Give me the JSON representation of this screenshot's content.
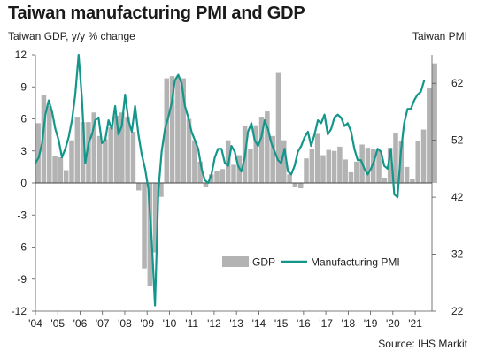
{
  "title": "Taiwan manufacturing PMI and GDP",
  "source": "Source: IHS Markit",
  "chart_data": {
    "type": "bar+line",
    "left_axis_label": "Taiwan GDP, y/y % change",
    "right_axis_label": "Taiwan PMI",
    "left_ticks": [
      "12",
      "9",
      "6",
      "3",
      "0",
      "-3",
      "-6",
      "-9",
      "-12"
    ],
    "left_ylim": [
      -12,
      12
    ],
    "right_ticks": [
      "62",
      "52",
      "42",
      "32",
      "22"
    ],
    "right_ylim": [
      22,
      67
    ],
    "x_ticks": [
      "'04",
      "'05",
      "'06",
      "'07",
      "'08",
      "'09",
      "'10",
      "'11",
      "'12",
      "'13",
      "'14",
      "'15",
      "'16",
      "'17",
      "'18",
      "'19",
      "'20",
      "'21"
    ],
    "gdp_quarter_start": 2004,
    "series": [
      {
        "name": "GDP",
        "axis": "left",
        "color": "#b3b3b3",
        "values": [
          5.6,
          8.2,
          7.2,
          2.5,
          2.4,
          1.2,
          4.0,
          6.2,
          5.7,
          5.7,
          6.6,
          4.4,
          4.1,
          5.2,
          6.3,
          6.6,
          6.2,
          4.8,
          -0.7,
          -8.0,
          -9.6,
          -6.5,
          -1.3,
          9.8,
          10.0,
          9.9,
          9.8,
          6.0,
          4.0,
          2.0,
          -0.4,
          0.8,
          1.1,
          1.3,
          4.0,
          1.7,
          2.6,
          5.3,
          3.2,
          5.4,
          6.2,
          6.7,
          4.4,
          10.3,
          4.0,
          0.8,
          -0.4,
          -0.5,
          2.3,
          3.2,
          4.6,
          2.6,
          3.1,
          3.0,
          3.4,
          2.2,
          1.0,
          2.0,
          3.6,
          3.3,
          3.2,
          3.0,
          0.5,
          3.3,
          4.7,
          3.9,
          1.5,
          0.4,
          3.9,
          5.0,
          8.9,
          11.2
        ]
      },
      {
        "name": "Manufacturing PMI",
        "axis": "right",
        "color": "#14968a",
        "values": [
          48.0,
          49.0,
          51.5,
          56.5,
          59.0,
          57.0,
          54.0,
          52.0,
          49.0,
          50.5,
          52.5,
          55.5,
          60.0,
          67.0,
          59.5,
          48.0,
          51.5,
          53.0,
          55.5,
          56.0,
          51.5,
          52.0,
          55.5,
          54.0,
          58.0,
          53.0,
          54.5,
          60.0,
          55.5,
          53.5,
          58.0,
          53.0,
          49.5,
          47.0,
          43.5,
          34.5,
          23.0,
          43.0,
          50.0,
          54.0,
          56.0,
          58.5,
          62.5,
          63.5,
          62.0,
          58.0,
          56.0,
          53.5,
          52.0,
          50.5,
          47.0,
          45.0,
          44.5,
          46.0,
          49.0,
          50.5,
          50.5,
          48.0,
          47.5,
          51.0,
          50.0,
          47.5,
          46.5,
          49.0,
          53.5,
          55.0,
          52.0,
          51.0,
          52.5,
          55.5,
          54.0,
          51.5,
          50.0,
          48.5,
          48.0,
          50.5,
          46.5,
          46.0,
          47.5,
          50.0,
          51.0,
          52.5,
          53.5,
          51.0,
          53.0,
          55.5,
          55.0,
          56.5,
          53.0,
          54.0,
          56.0,
          56.5,
          56.0,
          54.5,
          55.0,
          53.5,
          50.5,
          48.5,
          48.5,
          47.0,
          46.0,
          47.0,
          48.5,
          50.5,
          50.0,
          47.5,
          47.0,
          50.5,
          42.5,
          42.0,
          50.0,
          55.0,
          57.5,
          57.5,
          59.0,
          60.0,
          60.5,
          62.5
        ]
      }
    ],
    "legend": [
      "GDP",
      "Manufacturing PMI"
    ],
    "legend_position": "bottom-right"
  }
}
